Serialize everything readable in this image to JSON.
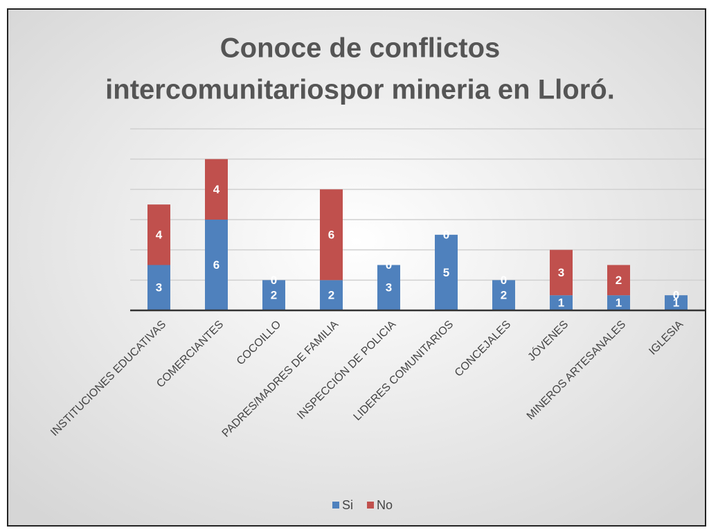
{
  "chart_data": {
    "type": "stacked_bar",
    "title": [
      "Conoce de conflictos",
      "intercomunitariospor mineria en Lloró."
    ],
    "categories": [
      "INSTITUCIONES EDUCATIVAS",
      "COMERCIANTES",
      "COCOILLO",
      "PADRES/MADRES DE FAMILIA",
      "INSPECCIÓN DE POLICIA",
      "LIDERES COMUNITARIOS",
      "CONCEJALES",
      "JÓVENES",
      "MINEROS ARTESANALES",
      "IGLESIA"
    ],
    "series": [
      {
        "name": "Si",
        "color": "#4f81bd",
        "values": [
          3,
          6,
          2,
          2,
          3,
          5,
          2,
          1,
          1,
          1
        ]
      },
      {
        "name": "No",
        "color": "#c0504d",
        "values": [
          4,
          4,
          0,
          6,
          0,
          0,
          0,
          3,
          2,
          0
        ]
      }
    ],
    "ylim": [
      0,
      12
    ],
    "yticks": [
      0,
      2,
      4,
      6,
      8,
      10,
      12
    ],
    "grid": true,
    "legend": "bottom"
  }
}
